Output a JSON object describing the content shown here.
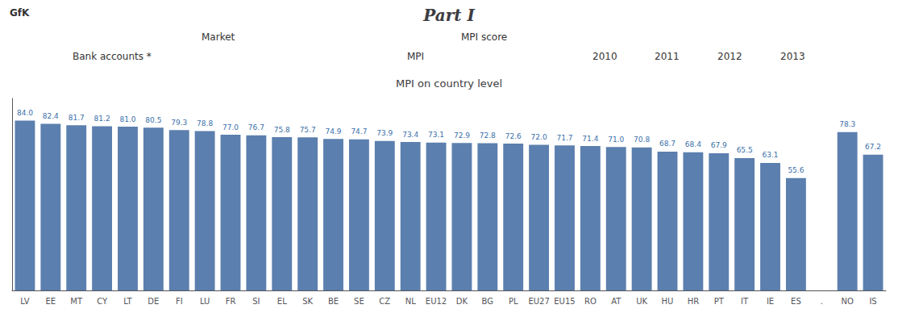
{
  "chart_data": {
    "type": "bar",
    "title": "Part I",
    "subtitle": "MPI on country level",
    "annotations": [
      "GfK",
      "Market",
      "MPI score",
      "Bank accounts *",
      "MPI",
      "2010",
      "2011",
      "2012",
      "2013"
    ],
    "categories": [
      "LV",
      "EE",
      "MT",
      "CY",
      "LT",
      "DE",
      "FI",
      "LU",
      "FR",
      "SI",
      "EL",
      "SK",
      "BE",
      "SE",
      "CZ",
      "NL",
      "EU12",
      "DK",
      "BG",
      "PL",
      "EU27",
      "EU15",
      "RO",
      "AT",
      "UK",
      "HU",
      "HR",
      "PT",
      "IT",
      "IE",
      "ES",
      ".",
      "NO",
      "IS"
    ],
    "values": [
      84.0,
      82.4,
      81.7,
      81.2,
      81.0,
      80.5,
      79.3,
      78.8,
      77.0,
      76.7,
      75.8,
      75.7,
      74.9,
      74.7,
      73.9,
      73.4,
      73.1,
      72.9,
      72.8,
      72.6,
      72.0,
      71.7,
      71.4,
      71.0,
      70.8,
      68.7,
      68.4,
      67.9,
      65.5,
      63.1,
      55.6,
      null,
      78.3,
      67.2
    ],
    "value_labels": [
      "84.0",
      "82.4",
      "81.7",
      "81.2",
      "81.0",
      "80.5",
      "79.3",
      "78.8",
      "77.0",
      "76.7",
      "75.8",
      "75.7",
      "74.9",
      "74.7",
      "73.9",
      "73.4",
      "73.1",
      "72.9",
      "72.8",
      "72.6",
      "72.0",
      "71.7",
      "71.4",
      "71.0",
      "70.8",
      "68.7",
      "68.4",
      "67.9",
      "65.5",
      "63.1",
      "55.6",
      null,
      "78.3",
      "67.2"
    ],
    "color": "#5b7fae",
    "ylim": [
      0,
      95
    ],
    "grid": false,
    "data_labels": true,
    "tick_labels": "x"
  }
}
